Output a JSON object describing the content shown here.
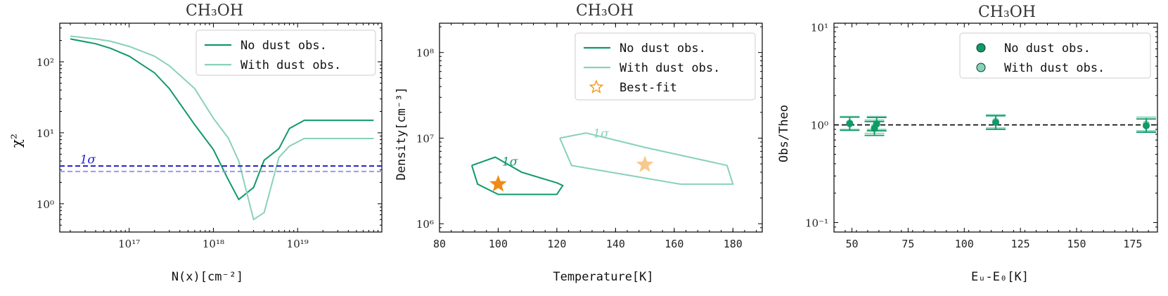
{
  "colors": {
    "no_dust": "#119966",
    "with_dust": "#88d1bb",
    "sigma_dark": "#1f1fcc",
    "sigma_light": "#9a9aee",
    "best_fit_dark": "#f08a14",
    "best_fit_light": "#f8c98c",
    "star_legend": "#f0a020",
    "ratio_line": "#111111"
  },
  "chart_data": [
    {
      "type": "line",
      "title": "CH₃OH",
      "xlabel": "N(x)[cm⁻²]",
      "ylabel": "χ²",
      "x_scale": "log",
      "y_scale": "log",
      "xlim": [
        1.5e+16,
        1e+20
      ],
      "ylim": [
        0.4,
        350
      ],
      "xticks": [
        {
          "value": 1e+17,
          "label": "10¹⁷"
        },
        {
          "value": 1e+18,
          "label": "10¹⁸"
        },
        {
          "value": 1e+19,
          "label": "10¹⁹"
        }
      ],
      "yticks": [
        {
          "value": 1,
          "label": "10⁰"
        },
        {
          "value": 10,
          "label": "10¹"
        },
        {
          "value": 100,
          "label": "10²"
        }
      ],
      "legend": {
        "placement": "top-right",
        "entries": [
          "No dust obs.",
          "With dust obs."
        ]
      },
      "series": [
        {
          "name": "No dust obs.",
          "x": [
            2e+16,
            4e+16,
            6e+16,
            1e+17,
            2e+17,
            3e+17,
            6e+17,
            1e+18,
            1.5e+18,
            2e+18,
            3e+18,
            4e+18,
            6e+18,
            8e+18,
            1.2e+19,
            8e+19
          ],
          "y": [
            210,
            180,
            155,
            120,
            70,
            42,
            13,
            5.8,
            2.2,
            1.15,
            1.7,
            4.1,
            6.0,
            11.5,
            15,
            15
          ]
        },
        {
          "name": "With dust obs.",
          "x": [
            2e+16,
            4e+16,
            6e+16,
            1e+17,
            2e+17,
            3e+17,
            6e+17,
            1e+18,
            1.5e+18,
            2e+18,
            3e+18,
            4e+18,
            6e+18,
            8e+18,
            1.2e+19,
            8e+19
          ],
          "y": [
            230,
            210,
            195,
            165,
            120,
            88,
            42,
            16,
            8.5,
            4.0,
            0.6,
            0.75,
            4.5,
            6.5,
            8.3,
            8.3
          ]
        }
      ],
      "hlines": [
        {
          "y": 3.4,
          "role": "sigma_no_dust"
        },
        {
          "y": 2.85,
          "role": "sigma_with_dust"
        }
      ],
      "annotations": [
        {
          "text": "1σ",
          "x": 2.6e+16,
          "y": 3.7
        }
      ]
    },
    {
      "type": "contour",
      "title": "CH₃OH",
      "xlabel": "Temperature[K]",
      "ylabel": "Density[cm⁻³]",
      "x_scale": "linear",
      "y_scale": "log",
      "xlim": [
        80,
        190
      ],
      "ylim": [
        800000,
        220000000
      ],
      "xticks": [
        {
          "value": 80,
          "label": "80"
        },
        {
          "value": 100,
          "label": "100"
        },
        {
          "value": 120,
          "label": "120"
        },
        {
          "value": 140,
          "label": "140"
        },
        {
          "value": 160,
          "label": "160"
        },
        {
          "value": 180,
          "label": "180"
        }
      ],
      "yticks": [
        {
          "value": 1000000.0,
          "label": "10⁶"
        },
        {
          "value": 10000000.0,
          "label": "10⁷"
        },
        {
          "value": 100000000.0,
          "label": "10⁸"
        }
      ],
      "legend": {
        "placement": "top-right",
        "entries": [
          "No dust obs.",
          "With dust obs.",
          "Best-fit"
        ]
      },
      "series": [
        {
          "name": "No dust obs.",
          "contour": [
            [
              91,
              4800000.0
            ],
            [
              99,
              6000000.0
            ],
            [
              108,
              4000000.0
            ],
            [
              120,
              3000000.0
            ],
            [
              122,
              2800000.0
            ],
            [
              120,
              2200000.0
            ],
            [
              100,
              2200000.0
            ],
            [
              93,
              2900000.0
            ],
            [
              91,
              4800000.0
            ]
          ],
          "label": "1σ",
          "label_pos": [
            104,
            4800000.0
          ],
          "best_fit": [
            100,
            2900000.0
          ]
        },
        {
          "name": "With dust obs.",
          "contour": [
            [
              121,
              10000000.0
            ],
            [
              130,
              11500000.0
            ],
            [
              150,
              7800000.0
            ],
            [
              178,
              4800000.0
            ],
            [
              180,
              2900000.0
            ],
            [
              162,
              2900000.0
            ],
            [
              125,
              4800000.0
            ],
            [
              121,
              10000000.0
            ]
          ],
          "label": "1σ",
          "label_pos": [
            135,
            10200000.0
          ],
          "best_fit": [
            150,
            4900000.0
          ]
        }
      ]
    },
    {
      "type": "scatter",
      "title": "CH₃OH",
      "xlabel": "Eᵤ-E₀[K]",
      "ylabel": "Obs/Theo",
      "x_scale": "linear",
      "y_scale": "log",
      "xlim": [
        42,
        186
      ],
      "ylim": [
        0.08,
        11
      ],
      "xticks": [
        {
          "value": 50,
          "label": "50"
        },
        {
          "value": 75,
          "label": "75"
        },
        {
          "value": 100,
          "label": "100"
        },
        {
          "value": 125,
          "label": "125"
        },
        {
          "value": 150,
          "label": "150"
        },
        {
          "value": 175,
          "label": "175"
        }
      ],
      "yticks": [
        {
          "value": 0.1,
          "label": "10⁻¹"
        },
        {
          "value": 1,
          "label": "10⁰"
        },
        {
          "value": 10,
          "label": "10¹"
        }
      ],
      "legend": {
        "placement": "top-right",
        "entries": [
          "No dust obs.",
          "With dust obs."
        ]
      },
      "hline": 1.0,
      "series": [
        {
          "name": "No dust obs.",
          "points": [
            {
              "x": 49,
              "y": 1.03,
              "ylo": 0.88,
              "yhi": 1.2
            },
            {
              "x": 60,
              "y": 0.92,
              "ylo": 0.78,
              "yhi": 1.08
            },
            {
              "x": 61,
              "y": 1.02,
              "ylo": 0.87,
              "yhi": 1.19
            },
            {
              "x": 114,
              "y": 1.06,
              "ylo": 0.9,
              "yhi": 1.24
            },
            {
              "x": 181,
              "y": 0.98,
              "ylo": 0.84,
              "yhi": 1.15
            }
          ]
        },
        {
          "name": "With dust obs.",
          "points": [
            {
              "x": 49,
              "y": 1.05,
              "ylo": 0.9,
              "yhi": 1.22
            },
            {
              "x": 60,
              "y": 0.96,
              "ylo": 0.82,
              "yhi": 1.12
            },
            {
              "x": 61,
              "y": 1.05,
              "ylo": 0.9,
              "yhi": 1.22
            },
            {
              "x": 114,
              "y": 1.09,
              "ylo": 0.93,
              "yhi": 1.27
            },
            {
              "x": 181,
              "y": 1.02,
              "ylo": 0.87,
              "yhi": 1.2
            }
          ]
        }
      ]
    }
  ]
}
